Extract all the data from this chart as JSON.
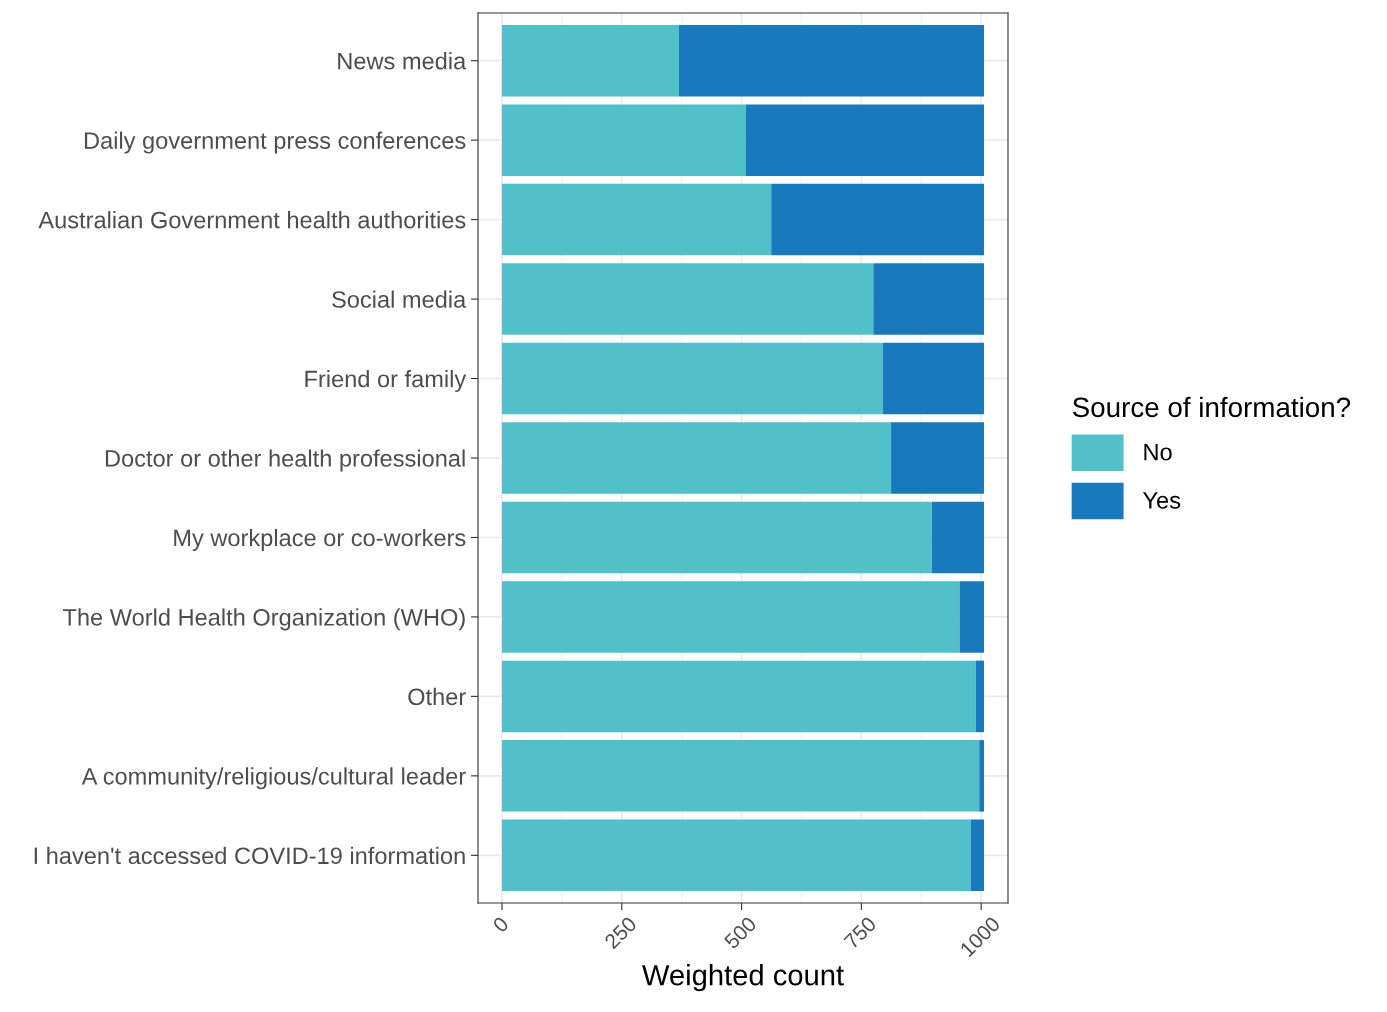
{
  "chart_data": {
    "type": "bar",
    "orientation": "horizontal",
    "stacked": true,
    "categories": [
      "News media",
      "Daily government press conferences",
      "Australian Government health authorities",
      "Social media",
      "Friend or family",
      "Doctor or other health professional",
      "My workplace or co-workers",
      "The World Health Organization (WHO)",
      "Other",
      "A community/religious/cultural leader",
      "I haven't accessed COVID-19 information"
    ],
    "series": [
      {
        "name": "No",
        "color": "#52c0c8",
        "values": [
          369,
          509,
          562,
          775,
          795,
          812,
          897,
          955,
          989,
          996,
          978
        ]
      },
      {
        "name": "Yes",
        "color": "#1a78bc",
        "values": [
          637,
          497,
          444,
          231,
          211,
          194,
          109,
          51,
          17,
          10,
          28
        ]
      }
    ],
    "xlabel": "Weighted count",
    "legend_title": "Source of information?",
    "xlim": [
      -50,
      1056
    ],
    "xticks": [
      0,
      250,
      500,
      750,
      1000
    ],
    "grid": true,
    "legend": "right"
  }
}
